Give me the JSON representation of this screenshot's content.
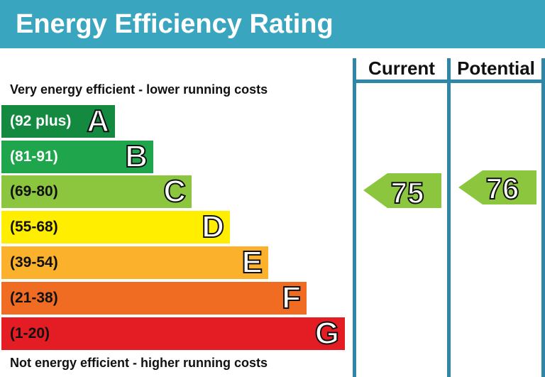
{
  "title": "Energy Efficiency Rating",
  "top_caption": "Very energy efficient - lower running costs",
  "bottom_caption": "Not energy efficient - higher running costs",
  "columns": {
    "current": "Current",
    "potential": "Potential"
  },
  "colors": {
    "header": "#3aa5bf",
    "column_lines": "#2f86a8"
  },
  "bands": [
    {
      "range": "(92 plus)",
      "letter": "A",
      "color": "#138a3f",
      "text_color": "#ffffff"
    },
    {
      "range": "(81-91)",
      "letter": "B",
      "color": "#1fa54b",
      "text_color": "#ffffff"
    },
    {
      "range": "(69-80)",
      "letter": "C",
      "color": "#8cc63f",
      "text_color": "#111111"
    },
    {
      "range": "(55-68)",
      "letter": "D",
      "color": "#ffee00",
      "text_color": "#111111"
    },
    {
      "range": "(39-54)",
      "letter": "E",
      "color": "#fbb12b",
      "text_color": "#111111"
    },
    {
      "range": "(21-38)",
      "letter": "F",
      "color": "#f06c23",
      "text_color": "#111111"
    },
    {
      "range": "(1-20)",
      "letter": "G",
      "color": "#e31d23",
      "text_color": "#111111"
    }
  ],
  "ratings": {
    "current": {
      "value": "75",
      "color": "#8cc63f"
    },
    "potential": {
      "value": "76",
      "color": "#8cc63f"
    }
  }
}
